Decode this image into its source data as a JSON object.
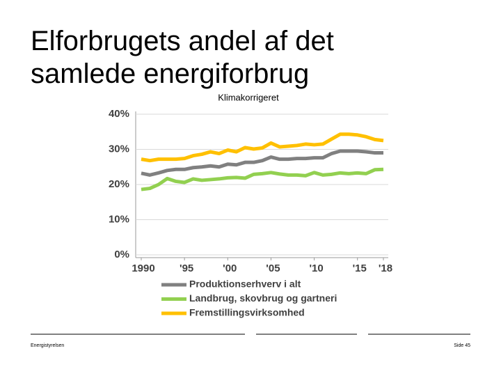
{
  "slide": {
    "title_lines": [
      "Elforbrugets andel af det",
      "samlede energiforbrug"
    ],
    "footer_left": "Energistyrelsen",
    "footer_right": "Side 45"
  },
  "chart_data": {
    "type": "line",
    "subtitle": "Klimakorrigeret",
    "x": [
      1990,
      1991,
      1992,
      1993,
      1994,
      1995,
      1996,
      1997,
      1998,
      1999,
      2000,
      2001,
      2002,
      2003,
      2004,
      2005,
      2006,
      2007,
      2008,
      2009,
      2010,
      2011,
      2012,
      2013,
      2014,
      2015,
      2016,
      2017,
      2018
    ],
    "xlim": [
      1990,
      2018
    ],
    "xticks": [
      1990,
      {
        "value": 1995,
        "label": "'95"
      },
      {
        "value": 2000,
        "label": "'00"
      },
      {
        "value": 2005,
        "label": "'05"
      },
      {
        "value": 2010,
        "label": "'10"
      },
      {
        "value": 2015,
        "label": "'15"
      },
      {
        "value": 2018,
        "label": "'18"
      }
    ],
    "ylim": [
      0,
      40
    ],
    "yticks": [
      {
        "value": 0,
        "label": "0%"
      },
      {
        "value": 10,
        "label": "10%"
      },
      {
        "value": 20,
        "label": "20%"
      },
      {
        "value": 30,
        "label": "30%"
      },
      {
        "value": 40,
        "label": "40%"
      }
    ],
    "grid": true,
    "series": [
      {
        "name": "Produktionserhverv i alt",
        "color": "#808080",
        "values": [
          23.2,
          22.7,
          23.3,
          24.0,
          24.3,
          24.3,
          24.8,
          25.0,
          25.3,
          25.0,
          25.8,
          25.6,
          26.3,
          26.3,
          26.8,
          27.8,
          27.2,
          27.2,
          27.4,
          27.4,
          27.6,
          27.6,
          28.8,
          29.5,
          29.5,
          29.5,
          29.3,
          29.0,
          29.0
        ]
      },
      {
        "name": "Landbrug, skovbrug og gartneri",
        "color": "#92d050",
        "values": [
          18.6,
          18.9,
          20.0,
          21.7,
          20.9,
          20.6,
          21.6,
          21.2,
          21.4,
          21.6,
          21.9,
          22.0,
          21.8,
          22.9,
          23.1,
          23.4,
          23.0,
          22.7,
          22.7,
          22.5,
          23.4,
          22.7,
          22.9,
          23.3,
          23.1,
          23.3,
          23.1,
          24.2,
          24.3
        ]
      },
      {
        "name": "Fremstillingsvirksomhed",
        "color": "#ffc000",
        "values": [
          27.2,
          26.8,
          27.2,
          27.2,
          27.2,
          27.4,
          28.2,
          28.6,
          29.3,
          28.8,
          29.8,
          29.3,
          30.5,
          30.1,
          30.4,
          31.8,
          30.7,
          30.9,
          31.1,
          31.5,
          31.3,
          31.5,
          32.9,
          34.3,
          34.3,
          34.1,
          33.6,
          32.8,
          32.5
        ]
      }
    ]
  }
}
